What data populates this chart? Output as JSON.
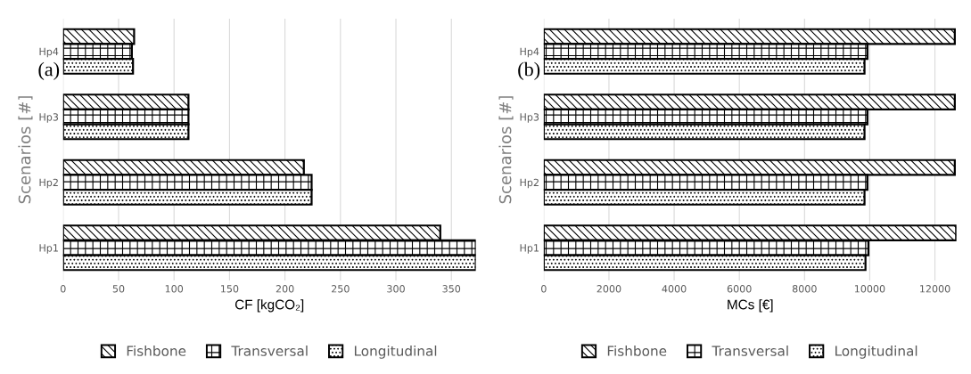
{
  "chart_data": [
    {
      "type": "bar",
      "orientation": "horizontal",
      "categories": [
        "Hp4",
        "Hp3",
        "Hp2",
        "Hp1"
      ],
      "xlabel": "CF [kgCO₂]",
      "ylabel": "Scenarios [#]",
      "xlim": [
        0,
        372
      ],
      "xticks": [
        0,
        50,
        100,
        150,
        200,
        250,
        300,
        350
      ],
      "grid": "x",
      "legend": "bottom",
      "annotations": [
        "(a)"
      ],
      "series": [
        {
          "name": "Fishbone",
          "color": "#000000",
          "values": [
            64,
            113,
            217,
            340
          ]
        },
        {
          "name": "Transversal",
          "color": "#000000",
          "values": [
            62,
            113,
            224,
            372
          ]
        },
        {
          "name": "Longitudinal",
          "color": "#000000",
          "values": [
            63,
            113,
            224,
            372
          ]
        }
      ]
    },
    {
      "type": "bar",
      "orientation": "horizontal",
      "categories": [
        "Hp4",
        "Hp3",
        "Hp2",
        "Hp1"
      ],
      "xlabel": "MCs [€]",
      "ylabel": "Scenarios [#]",
      "xlim": [
        0,
        12660
      ],
      "xticks": [
        0,
        2000,
        4000,
        6000,
        8000,
        10000,
        12000
      ],
      "grid": "x",
      "legend": "bottom",
      "annotations": [
        "(b)"
      ],
      "series": [
        {
          "name": "Fishbone",
          "color": "#000000",
          "values": [
            12610,
            12610,
            12610,
            12650
          ]
        },
        {
          "name": "Transversal",
          "color": "#000000",
          "values": [
            9930,
            9930,
            9930,
            9960
          ]
        },
        {
          "name": "Longitudinal",
          "color": "#000000",
          "values": [
            9840,
            9840,
            9840,
            9870
          ]
        }
      ]
    }
  ]
}
